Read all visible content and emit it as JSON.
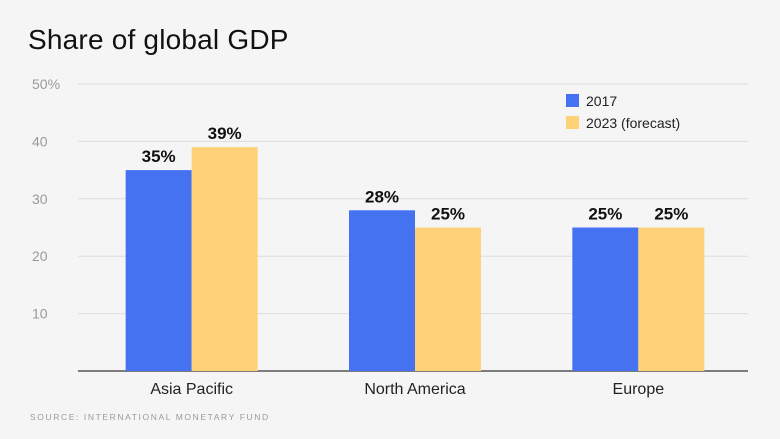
{
  "title": "Share of global GDP",
  "source": "Source: International Monetary Fund",
  "chart_data": {
    "type": "bar",
    "title": "Share of global GDP",
    "categories": [
      "Asia Pacific",
      "North America",
      "Europe"
    ],
    "series": [
      {
        "name": "2017",
        "values": [
          35,
          28,
          25
        ],
        "labels": [
          "35%",
          "28%",
          "25%"
        ],
        "color": "#4472f0"
      },
      {
        "name": "2023 (forecast)",
        "values": [
          39,
          25,
          25
        ],
        "labels": [
          "39%",
          "25%",
          "25%"
        ],
        "color": "#ffd27a"
      }
    ],
    "yticks": [
      10,
      20,
      30,
      40,
      50
    ],
    "ytick_labels": [
      "10",
      "20",
      "30",
      "40",
      "50%"
    ],
    "ylim": [
      0,
      50
    ],
    "xlabel": "",
    "ylabel": "",
    "grid": true,
    "legend_position": "top-right"
  }
}
